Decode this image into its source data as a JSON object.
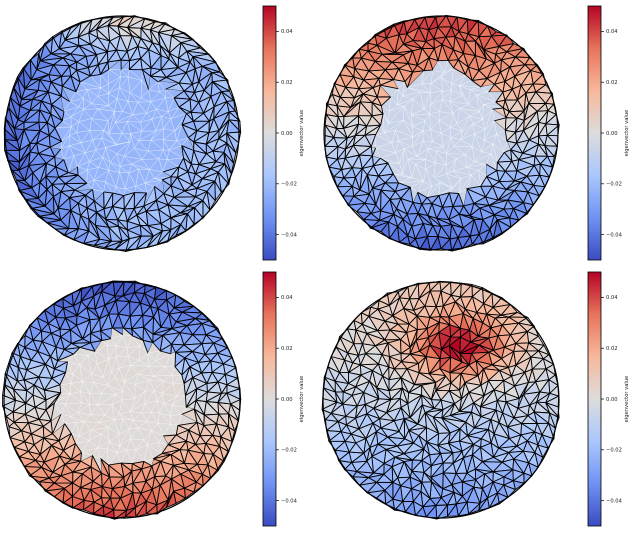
{
  "figure": {
    "colormap": "coolwarm",
    "colormap_stops": [
      "#3b4cc0",
      "#6f92f3",
      "#aac7fd",
      "#dddcdc",
      "#f7b89c",
      "#e7745b",
      "#b40426"
    ],
    "mesh_edge_color": "#000000",
    "inner_edge_color": "#ffffff",
    "panels": [
      {
        "position": "top-left",
        "colorbar": {
          "label": "eigenvector value",
          "range": [
            -0.05,
            0.05
          ],
          "ticks": [
            {
              "value": 0.04,
              "label": "0.04"
            },
            {
              "value": 0.02,
              "label": "0.02"
            },
            {
              "value": 0.0,
              "label": "0.00"
            },
            {
              "value": -0.02,
              "label": "−0.02"
            },
            {
              "value": -0.04,
              "label": "−0.04"
            }
          ]
        },
        "inner_patch_value": -0.022,
        "field": {
          "mode": "radial_left",
          "scale": 0.045
        }
      },
      {
        "position": "top-right",
        "colorbar": {
          "label": "eigenvector value",
          "range": [
            -0.05,
            0.05
          ],
          "ticks": [
            {
              "value": 0.04,
              "label": "0.04"
            },
            {
              "value": 0.02,
              "label": "0.02"
            },
            {
              "value": 0.0,
              "label": "0.00"
            },
            {
              "value": -0.02,
              "label": "−0.02"
            },
            {
              "value": -0.04,
              "label": "−0.04"
            }
          ]
        },
        "inner_patch_value": -0.006,
        "field": {
          "mode": "vertical",
          "scale": 0.045
        }
      },
      {
        "position": "bottom-left",
        "colorbar": {
          "label": "eigenvector value",
          "range": [
            -0.05,
            0.05
          ],
          "ticks": [
            {
              "value": 0.04,
              "label": "0.04"
            },
            {
              "value": 0.02,
              "label": "0.02"
            },
            {
              "value": 0.0,
              "label": "0.00"
            },
            {
              "value": -0.02,
              "label": "−0.02"
            },
            {
              "value": -0.04,
              "label": "−0.04"
            }
          ]
        },
        "inner_patch_value": 0.001,
        "field": {
          "mode": "vertical_inverted",
          "scale": 0.048
        }
      },
      {
        "position": "bottom-right",
        "colorbar": {
          "label": "eigenvector value",
          "range": [
            -0.05,
            0.05
          ],
          "ticks": [
            {
              "value": 0.04,
              "label": "0.04"
            },
            {
              "value": 0.02,
              "label": "0.02"
            },
            {
              "value": 0.0,
              "label": "0.00"
            },
            {
              "value": -0.02,
              "label": "−0.02"
            },
            {
              "value": -0.04,
              "label": "−0.04"
            }
          ]
        },
        "inner_patch_value": null,
        "field": {
          "mode": "bands",
          "scale": 0.045
        }
      }
    ]
  }
}
